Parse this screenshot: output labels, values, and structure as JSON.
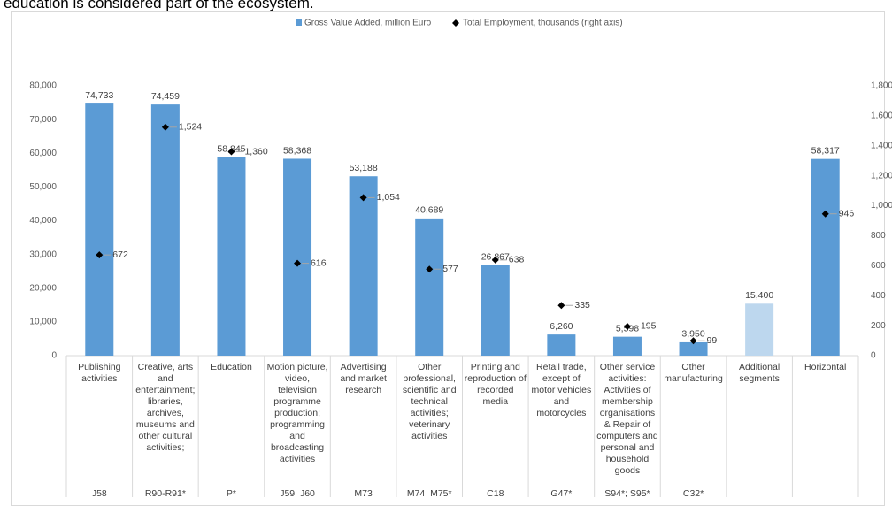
{
  "caption": "education is considered part of the ecosystem.",
  "chart_data": {
    "type": "bar",
    "categories": [
      "Publishing activities",
      "Creative, arts and entertainment; libraries, archives, museums and other cultural activities;",
      "Education",
      "Motion picture, video, television programme production; programming and broadcasting activities",
      "Advertising and market research",
      "Other professional, scientific and technical activities; veterinary activities",
      "Printing and reproduction of recorded media",
      "Retail trade, except of motor vehicles and motorcycles",
      "Other service activities: Activities of membership organisations & Repair of computers and personal and household goods",
      "Other manufacturing",
      "Additional segments",
      "Horizontal"
    ],
    "codes": [
      "J58",
      "R90-R91*",
      "P*",
      "J59_J60",
      "M73",
      "M74_M75*",
      "C18",
      "G47*",
      "S94*; S95*",
      "C32*",
      null,
      null
    ],
    "series": [
      {
        "name": "Gross Value Added, million Euro",
        "color": "#5b9bd5",
        "highlight_color": "#bdd7ee",
        "highlight_index": 10,
        "values": [
          74733,
          74459,
          58845,
          58368,
          53188,
          40689,
          26867,
          6260,
          5598,
          3950,
          15400,
          58317
        ],
        "value_labels": [
          "74,733",
          "74,459",
          "58,845",
          "58,368",
          "53,188",
          "40,689",
          "26,867",
          "6,260",
          "5,598",
          "3,950",
          "15,400",
          "58,317"
        ]
      },
      {
        "name": "Total Employment, thousands (right axis)",
        "color": "#000000",
        "axis": "y2",
        "values": [
          672,
          1524,
          1360,
          616,
          1054,
          577,
          638,
          335,
          195,
          99,
          null,
          946
        ],
        "value_labels": [
          "672",
          "1,524",
          "1,360",
          "616",
          "1,054",
          "577",
          "638",
          "335",
          "195",
          "99",
          null,
          "946"
        ]
      }
    ],
    "ylim": [
      0,
      80000
    ],
    "yticks": [
      0,
      {
        "value": 10000,
        "label": "10,000"
      },
      {
        "value": 20000,
        "label": "20,000"
      },
      {
        "value": 30000,
        "label": "30,000"
      },
      {
        "value": 40000,
        "label": "40,000"
      },
      {
        "value": 50000,
        "label": "50,000"
      },
      {
        "value": 60000,
        "label": "60,000"
      },
      {
        "value": 70000,
        "label": "70,000"
      },
      {
        "value": 80000,
        "label": "80,000"
      }
    ],
    "y2lim": [
      0,
      1800
    ],
    "y2ticks": [
      0,
      200,
      400,
      600,
      800,
      {
        "value": 1000,
        "label": "1,000"
      },
      {
        "value": 1200,
        "label": "1,200"
      },
      {
        "value": 1400,
        "label": "1,400"
      },
      {
        "value": 1600,
        "label": "1,600"
      },
      {
        "value": 1800,
        "label": "1,800"
      }
    ],
    "legend": "top"
  }
}
